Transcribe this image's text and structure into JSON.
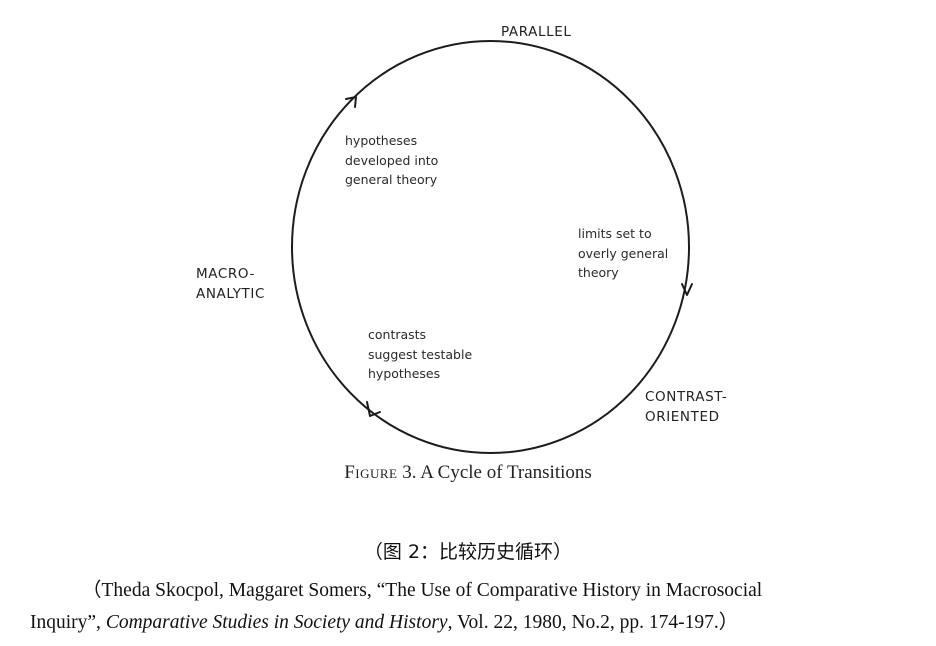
{
  "diagram": {
    "nodes": {
      "top": {
        "lines": [
          "PARALLEL"
        ]
      },
      "left": {
        "lines": [
          "MACRO-",
          "ANALYTIC"
        ]
      },
      "bottom_right": {
        "lines": [
          "CONTRAST-",
          "ORIENTED"
        ]
      }
    },
    "transitions": {
      "left_to_top": {
        "lines": [
          "hypotheses",
          "developed into",
          "general theory"
        ]
      },
      "top_to_bottom_right": {
        "lines": [
          "limits set to",
          "overly general",
          "theory"
        ]
      },
      "bottom_right_to_left": {
        "lines": [
          "contrasts",
          "suggest testable",
          "hypotheses"
        ]
      }
    },
    "direction": "clockwise"
  },
  "figure_caption": {
    "label": "Figure",
    "number": " 3.",
    "title": " A Cycle of Transitions"
  },
  "zh_caption": "（图 2：比较历史循环）",
  "citation": {
    "open_paren": "（",
    "authors": "Theda Skocpol, Maggaret Somers, ",
    "article": "“The Use of Comparative History in Macrosocial",
    "article_cont": "Inquiry”, ",
    "journal": "Comparative Studies in Society and History",
    "details": ", Vol. 22, 1980, No.2, pp. 174-197.",
    "close_paren": "）"
  }
}
